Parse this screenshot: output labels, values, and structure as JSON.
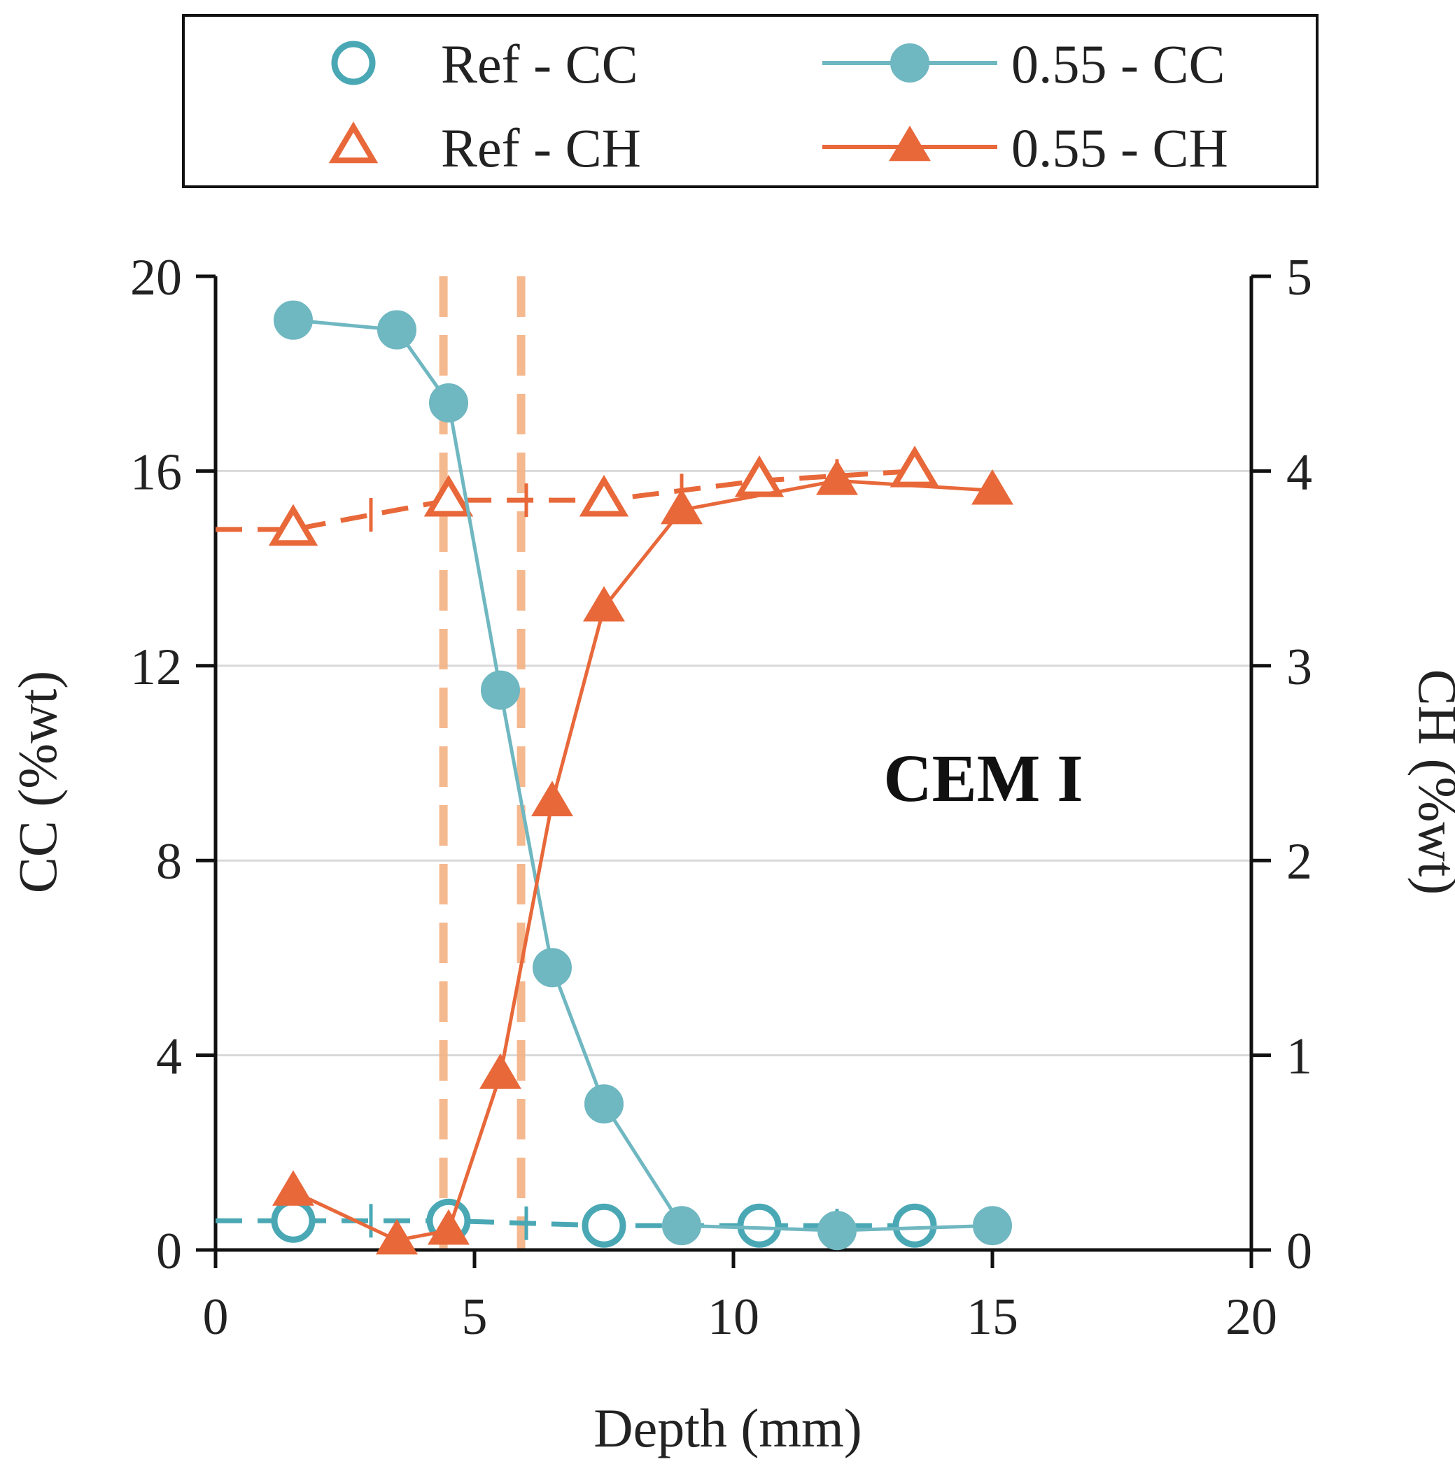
{
  "chart_data": {
    "type": "line",
    "title": "",
    "annotation": "CEM I",
    "xlabel": "Depth (mm)",
    "ylabel": "CC (%wt)",
    "y2label": "CH (%wt)",
    "xlim": [
      0,
      20
    ],
    "ylim": [
      0,
      20
    ],
    "y2lim": [
      0,
      5
    ],
    "xticks": [
      "0",
      "5",
      "10",
      "15",
      "20"
    ],
    "yticks": [
      "0",
      "4",
      "8",
      "12",
      "16",
      "20"
    ],
    "y2ticks": [
      "0",
      "1",
      "2",
      "3",
      "4",
      "5"
    ],
    "grid": "horizontal",
    "legend_position": "top",
    "vertical_markers": [
      4.4,
      5.9
    ],
    "series": [
      {
        "name": "Ref - CC",
        "axis": "left",
        "marker": "open-circle",
        "line": "dashed",
        "color": "#4aa8b5",
        "x": [
          1.5,
          4.5,
          7.5,
          10.5,
          13.5
        ],
        "y": [
          0.6,
          0.6,
          0.5,
          0.5,
          0.5
        ],
        "error_bars": true
      },
      {
        "name": "Ref - CH",
        "axis": "right",
        "marker": "open-triangle",
        "line": "dashed",
        "color": "#e8683a",
        "x": [
          1.5,
          4.5,
          7.5,
          10.5,
          13.5
        ],
        "y": [
          3.7,
          3.85,
          3.85,
          3.95,
          4.0
        ],
        "error_bars": true
      },
      {
        "name": "0.55 - CC",
        "axis": "left",
        "marker": "filled-circle",
        "line": "solid",
        "color": "#6fb7c1",
        "x": [
          1.5,
          3.5,
          4.5,
          5.5,
          6.5,
          7.5,
          9.0,
          12.0,
          15.0
        ],
        "y": [
          19.1,
          18.9,
          17.4,
          11.5,
          5.8,
          3.0,
          0.5,
          0.4,
          0.5
        ]
      },
      {
        "name": "0.55 - CH",
        "axis": "right",
        "marker": "filled-triangle",
        "line": "solid",
        "color": "#e8683a",
        "x": [
          1.5,
          3.5,
          4.5,
          5.5,
          6.5,
          7.5,
          9.0,
          12.0,
          15.0
        ],
        "y": [
          0.3,
          0.05,
          0.1,
          0.9,
          2.3,
          3.3,
          3.8,
          3.95,
          3.9
        ]
      }
    ]
  }
}
